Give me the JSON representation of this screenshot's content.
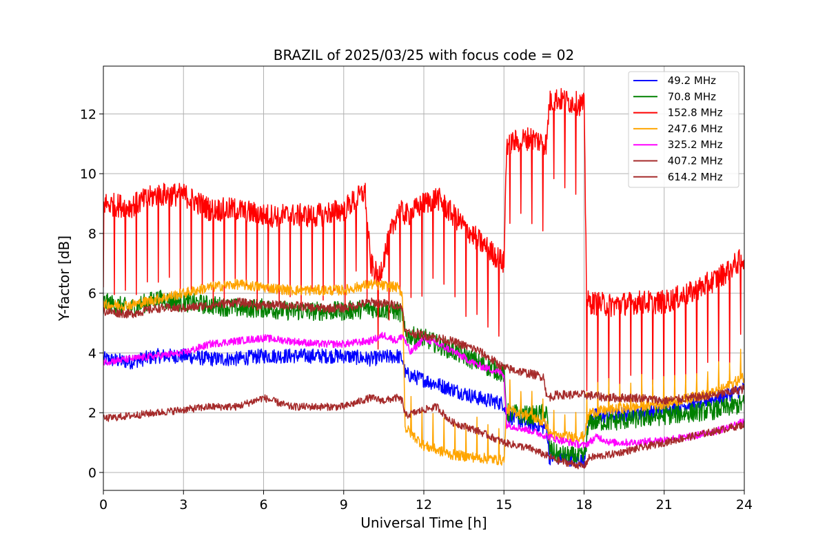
{
  "chart_data": {
    "type": "line",
    "title": "BRAZIL of 2025/03/25 with focus code = 02",
    "xlabel": "Universal Time [h]",
    "ylabel": "Y-factor [dB]",
    "xlim": [
      0,
      24
    ],
    "ylim": [
      -0.6,
      13.6
    ],
    "xticks": [
      0,
      3,
      6,
      9,
      12,
      15,
      18,
      21,
      24
    ],
    "xtick_labels": [
      "0",
      "3",
      "6",
      "9",
      "12",
      "15",
      "18",
      "21",
      "24"
    ],
    "yticks": [
      0,
      2,
      4,
      6,
      8,
      10,
      12
    ],
    "ytick_labels": [
      "0",
      "2",
      "4",
      "6",
      "8",
      "10",
      "12"
    ],
    "grid": true,
    "legend_position": "top-right",
    "series": [
      {
        "name": " 49.2 MHz",
        "color": "#0000ff",
        "x": [
          0,
          1,
          2,
          3,
          4,
          5,
          6,
          7,
          8,
          9,
          10,
          11,
          11.2,
          11.3,
          12,
          13,
          14,
          15,
          15.1,
          16,
          16.6,
          16.7,
          17,
          18,
          18.2,
          19,
          20,
          21,
          22,
          23,
          24
        ],
        "y": [
          3.8,
          3.7,
          3.9,
          3.9,
          3.8,
          3.8,
          3.9,
          3.9,
          3.9,
          3.9,
          3.8,
          3.9,
          3.8,
          3.3,
          3.1,
          2.8,
          2.5,
          2.3,
          1.9,
          1.6,
          1.5,
          0.5,
          0.5,
          0.4,
          1.9,
          1.9,
          2.0,
          2.1,
          2.3,
          2.5,
          2.8
        ],
        "noise": 0.5
      },
      {
        "name": " 70.8 MHz",
        "color": "#008000",
        "x": [
          0,
          1,
          2,
          3,
          4,
          5,
          6,
          7,
          8,
          9,
          10,
          11,
          11.2,
          11.3,
          12,
          13,
          14,
          15,
          15.1,
          16,
          16.6,
          16.7,
          17,
          18,
          18.2,
          19,
          20,
          21,
          22,
          23,
          24
        ],
        "y": [
          5.7,
          5.5,
          5.8,
          5.7,
          5.6,
          5.5,
          5.5,
          5.4,
          5.4,
          5.4,
          5.5,
          5.4,
          5.3,
          4.6,
          4.5,
          4.1,
          3.7,
          3.3,
          2.0,
          1.9,
          2.0,
          0.8,
          0.6,
          0.5,
          1.7,
          1.7,
          1.8,
          1.9,
          2.0,
          2.1,
          2.3
        ],
        "noise": 0.65
      },
      {
        "name": " 152.8 MHz",
        "color": "#ff0000",
        "x": [
          0,
          1,
          2,
          3,
          4,
          5,
          6,
          7,
          8,
          9,
          9.8,
          10,
          10.3,
          10.6,
          11,
          11.2,
          11.4,
          12,
          12.5,
          13,
          14,
          15,
          15.1,
          16,
          16.6,
          16.7,
          17,
          18,
          18.1,
          19,
          20,
          21,
          22,
          23,
          24
        ],
        "y": [
          9.0,
          8.9,
          9.3,
          9.3,
          8.8,
          8.8,
          8.6,
          8.6,
          8.6,
          8.8,
          9.4,
          7.0,
          6.5,
          7.5,
          8.7,
          8.7,
          8.6,
          9.0,
          9.2,
          8.7,
          7.8,
          7.0,
          11.0,
          11.2,
          11.0,
          12.4,
          12.5,
          12.3,
          5.7,
          5.6,
          5.7,
          5.7,
          6.0,
          6.5,
          7.2
        ],
        "noise": 0.8
      },
      {
        "name": " 247.6 MHz",
        "color": "#ffa500",
        "x": [
          0,
          1,
          2,
          3,
          4,
          5,
          6,
          7,
          8,
          9,
          10,
          11,
          11.2,
          11.3,
          12,
          13,
          14,
          15,
          15.1,
          16,
          16.6,
          16.7,
          17,
          18,
          18.2,
          19,
          20,
          21,
          22,
          23,
          24
        ],
        "y": [
          5.6,
          5.6,
          5.8,
          6.0,
          6.2,
          6.3,
          6.2,
          6.1,
          6.1,
          6.1,
          6.3,
          6.2,
          6.0,
          1.5,
          0.9,
          0.6,
          0.5,
          0.4,
          2.1,
          1.9,
          1.6,
          1.3,
          1.2,
          1.2,
          2.0,
          2.1,
          2.2,
          2.3,
          2.5,
          2.7,
          3.2
        ],
        "noise": 0.35
      },
      {
        "name": " 325.2 MHz",
        "color": "#ff00ff",
        "x": [
          0,
          1,
          2,
          3,
          4,
          5,
          6,
          7,
          8,
          9,
          10,
          10.5,
          11,
          11.2,
          11.5,
          12,
          13,
          14,
          15,
          15.1,
          16,
          17,
          18,
          18.5,
          19,
          20,
          21,
          22,
          23,
          24
        ],
        "y": [
          3.7,
          3.8,
          3.9,
          4.0,
          4.3,
          4.4,
          4.5,
          4.4,
          4.3,
          4.3,
          4.4,
          4.6,
          4.4,
          4.6,
          4.0,
          4.5,
          4.1,
          3.6,
          3.3,
          1.6,
          1.4,
          1.1,
          0.9,
          1.2,
          1.0,
          1.0,
          1.1,
          1.2,
          1.4,
          1.7
        ],
        "noise": 0.25
      },
      {
        "name": " 407.2 MHz",
        "color": "#a52a2a",
        "x": [
          0,
          1,
          2,
          3,
          4,
          5,
          6,
          7,
          8,
          9,
          10,
          10.5,
          11,
          11.2,
          11.3,
          12,
          12.5,
          13,
          14,
          15,
          16,
          17,
          18,
          18.2,
          19,
          20,
          21,
          22,
          23,
          24
        ],
        "y": [
          1.8,
          1.9,
          2.0,
          2.1,
          2.2,
          2.2,
          2.5,
          2.2,
          2.2,
          2.2,
          2.5,
          2.4,
          2.5,
          2.4,
          1.9,
          2.1,
          2.2,
          1.7,
          1.4,
          1.0,
          0.8,
          0.4,
          0.2,
          0.5,
          0.6,
          0.8,
          1.0,
          1.2,
          1.4,
          1.6
        ],
        "noise": 0.25
      },
      {
        "name": " 614.2 MHz",
        "color": "#a52a2a",
        "x": [
          0,
          1,
          2,
          3,
          4,
          5,
          6,
          7,
          8,
          9,
          10,
          11,
          11.2,
          11.3,
          12,
          13,
          14,
          15,
          16,
          16.5,
          16.6,
          17,
          18,
          19,
          20,
          21,
          22,
          23,
          24
        ],
        "y": [
          5.4,
          5.3,
          5.5,
          5.5,
          5.6,
          5.7,
          5.6,
          5.6,
          5.5,
          5.5,
          5.7,
          5.6,
          5.5,
          4.7,
          4.6,
          4.4,
          4.1,
          3.5,
          3.3,
          3.2,
          2.5,
          2.6,
          2.6,
          2.5,
          2.5,
          2.4,
          2.5,
          2.6,
          2.8
        ],
        "noise": 0.3
      }
    ]
  }
}
